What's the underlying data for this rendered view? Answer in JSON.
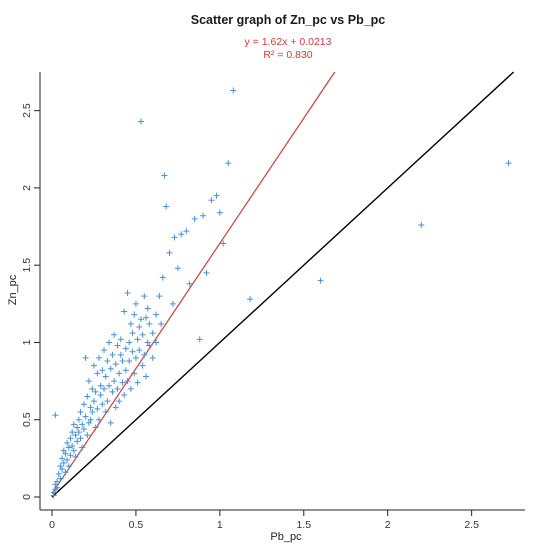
{
  "chart_data": {
    "type": "scatter",
    "title": "Scatter graph of Zn_pc vs Pb_pc",
    "annotations": {
      "equation": "y = 1.62x + 0.0213",
      "r_squared": "R² = 0.830"
    },
    "xlabel": "Pb_pc",
    "ylabel": "Zn_pc",
    "xlim": [
      0,
      2.8
    ],
    "ylim": [
      0,
      2.75
    ],
    "xticks": [
      0,
      0.5,
      1,
      1.5,
      2,
      2.5
    ],
    "xtick_labels": [
      "0",
      "0.5",
      "1",
      "1.5",
      "2",
      "2.5"
    ],
    "yticks": [
      0,
      0.5,
      1,
      1.5,
      2,
      2.5
    ],
    "ytick_labels": [
      "0",
      "0.5",
      "1",
      "1.5",
      "2",
      "2.5"
    ],
    "grid": false,
    "regression": {
      "slope": 1.62,
      "intercept": 0.0213
    },
    "reference_line": {
      "slope": 1,
      "intercept": 0
    },
    "colors": {
      "points": "#4a90d9",
      "regression": "#d43a3a",
      "reference": "#000000"
    },
    "points": [
      [
        0.01,
        0.01
      ],
      [
        0.01,
        0.03
      ],
      [
        0.02,
        0.05
      ],
      [
        0.02,
        0.08
      ],
      [
        0.03,
        0.1
      ],
      [
        0.03,
        0.06
      ],
      [
        0.02,
        0.53
      ],
      [
        0.04,
        0.15
      ],
      [
        0.05,
        0.12
      ],
      [
        0.05,
        0.2
      ],
      [
        0.06,
        0.18
      ],
      [
        0.06,
        0.25
      ],
      [
        0.07,
        0.22
      ],
      [
        0.07,
        0.3
      ],
      [
        0.08,
        0.28
      ],
      [
        0.08,
        0.16
      ],
      [
        0.09,
        0.35
      ],
      [
        0.09,
        0.24
      ],
      [
        0.1,
        0.32
      ],
      [
        0.1,
        0.2
      ],
      [
        0.11,
        0.38
      ],
      [
        0.11,
        0.27
      ],
      [
        0.12,
        0.42
      ],
      [
        0.12,
        0.33
      ],
      [
        0.13,
        0.3
      ],
      [
        0.13,
        0.47
      ],
      [
        0.14,
        0.4
      ],
      [
        0.14,
        0.26
      ],
      [
        0.15,
        0.45
      ],
      [
        0.15,
        0.36
      ],
      [
        0.16,
        0.5
      ],
      [
        0.16,
        0.42
      ],
      [
        0.17,
        0.38
      ],
      [
        0.17,
        0.55
      ],
      [
        0.18,
        0.47
      ],
      [
        0.18,
        0.32
      ],
      [
        0.19,
        0.6
      ],
      [
        0.19,
        0.44
      ],
      [
        0.2,
        0.52
      ],
      [
        0.2,
        0.9
      ],
      [
        0.21,
        0.65
      ],
      [
        0.21,
        0.4
      ],
      [
        0.22,
        0.48
      ],
      [
        0.22,
        0.75
      ],
      [
        0.23,
        0.58
      ],
      [
        0.23,
        0.5
      ],
      [
        0.24,
        0.7
      ],
      [
        0.24,
        0.55
      ],
      [
        0.25,
        0.62
      ],
      [
        0.25,
        0.85
      ],
      [
        0.26,
        0.45
      ],
      [
        0.26,
        0.68
      ],
      [
        0.27,
        0.8
      ],
      [
        0.27,
        0.57
      ],
      [
        0.28,
        0.9
      ],
      [
        0.28,
        0.5
      ],
      [
        0.29,
        0.66
      ],
      [
        0.29,
        0.72
      ],
      [
        0.3,
        0.6
      ],
      [
        0.3,
        0.82
      ],
      [
        0.31,
        0.95
      ],
      [
        0.31,
        0.7
      ],
      [
        0.32,
        0.55
      ],
      [
        0.32,
        0.78
      ],
      [
        0.33,
        0.88
      ],
      [
        0.33,
        0.62
      ],
      [
        0.34,
        0.72
      ],
      [
        0.34,
        1.0
      ],
      [
        0.35,
        0.83
      ],
      [
        0.35,
        0.48
      ],
      [
        0.36,
        0.68
      ],
      [
        0.36,
        0.92
      ],
      [
        0.37,
        1.05
      ],
      [
        0.37,
        0.75
      ],
      [
        0.38,
        0.58
      ],
      [
        0.38,
        0.86
      ],
      [
        0.39,
        0.98
      ],
      [
        0.39,
        0.7
      ],
      [
        0.4,
        0.8
      ],
      [
        0.4,
        0.62
      ],
      [
        0.41,
        0.92
      ],
      [
        0.41,
        1.02
      ],
      [
        0.42,
        0.74
      ],
      [
        0.42,
        0.88
      ],
      [
        0.43,
        1.2
      ],
      [
        0.43,
        0.66
      ],
      [
        0.44,
        0.96
      ],
      [
        0.44,
        0.82
      ],
      [
        0.45,
        1.32
      ],
      [
        0.45,
        0.75
      ],
      [
        0.46,
        1.0
      ],
      [
        0.46,
        0.88
      ],
      [
        0.47,
        1.12
      ],
      [
        0.47,
        0.7
      ],
      [
        0.48,
        0.94
      ],
      [
        0.48,
        1.06
      ],
      [
        0.49,
        0.8
      ],
      [
        0.49,
        1.18
      ],
      [
        0.5,
        0.9
      ],
      [
        0.5,
        1.25
      ],
      [
        0.51,
        1.02
      ],
      [
        0.51,
        0.74
      ],
      [
        0.52,
        1.1
      ],
      [
        0.52,
        0.95
      ],
      [
        0.53,
        2.43
      ],
      [
        0.53,
        1.15
      ],
      [
        0.54,
        0.85
      ],
      [
        0.54,
        1.05
      ],
      [
        0.55,
        1.3
      ],
      [
        0.55,
        0.92
      ],
      [
        0.56,
        1.16
      ],
      [
        0.56,
        0.78
      ],
      [
        0.57,
        1.0
      ],
      [
        0.57,
        1.22
      ],
      [
        0.58,
        0.98
      ],
      [
        0.58,
        1.12
      ],
      [
        0.6,
        1.06
      ],
      [
        0.6,
        0.9
      ],
      [
        0.62,
        1.18
      ],
      [
        0.62,
        1.0
      ],
      [
        0.64,
        1.3
      ],
      [
        0.65,
        1.12
      ],
      [
        0.66,
        1.42
      ],
      [
        0.67,
        2.08
      ],
      [
        0.68,
        1.88
      ],
      [
        0.7,
        1.58
      ],
      [
        0.72,
        1.25
      ],
      [
        0.73,
        1.68
      ],
      [
        0.75,
        1.48
      ],
      [
        0.77,
        1.7
      ],
      [
        0.8,
        1.72
      ],
      [
        0.82,
        1.38
      ],
      [
        0.85,
        1.8
      ],
      [
        0.88,
        1.02
      ],
      [
        0.9,
        1.82
      ],
      [
        0.92,
        1.45
      ],
      [
        0.95,
        1.92
      ],
      [
        0.98,
        1.95
      ],
      [
        1.0,
        1.84
      ],
      [
        1.02,
        1.64
      ],
      [
        1.05,
        2.16
      ],
      [
        1.08,
        2.63
      ],
      [
        1.18,
        1.28
      ],
      [
        1.6,
        1.4
      ],
      [
        2.2,
        1.76
      ],
      [
        2.72,
        2.16
      ]
    ]
  }
}
